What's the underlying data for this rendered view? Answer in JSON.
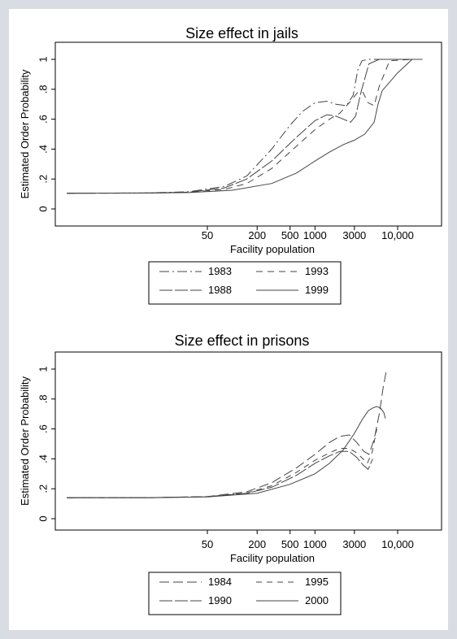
{
  "chart_data": [
    {
      "type": "line",
      "title": "Size effect in jails",
      "xlabel": "Facility population",
      "ylabel": "Estimated Order Probability",
      "x_scale": "log",
      "x_ticks": [
        50,
        200,
        500,
        1000,
        3000,
        10000
      ],
      "x_tick_labels": [
        "50",
        "200",
        "500",
        "1000",
        "3000",
        "10,000"
      ],
      "xlim": [
        1,
        30000
      ],
      "y_ticks": [
        0,
        0.2,
        0.4,
        0.6,
        0.8,
        1
      ],
      "y_tick_labels": [
        "0",
        ".2",
        ".4",
        ".6",
        ".8",
        "1"
      ],
      "ylim": [
        -0.03,
        1.03
      ],
      "grid": false,
      "legend_position": "below",
      "series": [
        {
          "name": "1983",
          "dash": "12,4,2,4",
          "x": [
            1,
            10,
            30,
            80,
            150,
            300,
            500,
            700,
            1000,
            1400,
            1800,
            2400,
            2900,
            3300,
            3700,
            4400,
            5500,
            8000,
            15000
          ],
          "y": [
            0.105,
            0.107,
            0.115,
            0.15,
            0.22,
            0.4,
            0.56,
            0.65,
            0.71,
            0.72,
            0.7,
            0.69,
            0.76,
            0.93,
            0.99,
            1.0,
            1.0,
            1.0,
            1.0
          ]
        },
        {
          "name": "1993",
          "dash": "8,6",
          "x": [
            1,
            10,
            30,
            80,
            150,
            300,
            600,
            1000,
            1500,
            2000,
            2700,
            3300,
            3800,
            4400,
            5200,
            6000,
            8000,
            15000
          ],
          "y": [
            0.105,
            0.106,
            0.112,
            0.13,
            0.17,
            0.27,
            0.42,
            0.53,
            0.6,
            0.64,
            0.72,
            0.78,
            0.78,
            0.71,
            0.69,
            0.82,
            0.99,
            1.0
          ]
        },
        {
          "name": "1988",
          "dash": "16,3",
          "x": [
            1,
            10,
            30,
            80,
            150,
            300,
            600,
            1000,
            1400,
            1800,
            2200,
            2700,
            3100,
            3600,
            4500,
            6000,
            8000,
            15000
          ],
          "y": [
            0.105,
            0.107,
            0.112,
            0.14,
            0.2,
            0.32,
            0.48,
            0.59,
            0.63,
            0.62,
            0.6,
            0.58,
            0.62,
            0.78,
            0.97,
            1.0,
            1.0,
            1.0
          ]
        },
        {
          "name": "1999",
          "dash": "",
          "x": [
            1,
            10,
            30,
            100,
            300,
            600,
            1000,
            1500,
            2200,
            3000,
            4000,
            5200,
            5800,
            6500,
            7500,
            10000,
            15000,
            20000
          ],
          "y": [
            0.105,
            0.106,
            0.109,
            0.125,
            0.17,
            0.24,
            0.32,
            0.38,
            0.43,
            0.46,
            0.5,
            0.58,
            0.7,
            0.79,
            0.83,
            0.91,
            1.0,
            1.0
          ]
        }
      ]
    },
    {
      "type": "line",
      "title": "Size effect in prisons",
      "xlabel": "Facility population",
      "ylabel": "Estimated Order Probability",
      "x_scale": "log",
      "x_ticks": [
        50,
        200,
        500,
        1000,
        3000,
        10000
      ],
      "x_tick_labels": [
        "50",
        "200",
        "500",
        "1000",
        "3000",
        "10,000"
      ],
      "xlim": [
        1,
        30000
      ],
      "y_ticks": [
        0,
        0.2,
        0.4,
        0.6,
        0.8,
        1
      ],
      "y_tick_labels": [
        "0",
        ".2",
        ".4",
        ".6",
        ".8",
        "1"
      ],
      "ylim": [
        -0.03,
        1.03
      ],
      "grid": false,
      "legend_position": "below",
      "series": [
        {
          "name": "1984",
          "dash": "12,5",
          "x": [
            1,
            10,
            50,
            150,
            300,
            600,
            1000,
            1500,
            2000,
            2600,
            3200,
            3900,
            4500,
            5200,
            6000,
            6700,
            7300
          ],
          "y": [
            0.14,
            0.141,
            0.148,
            0.18,
            0.24,
            0.34,
            0.43,
            0.51,
            0.55,
            0.56,
            0.51,
            0.45,
            0.43,
            0.53,
            0.7,
            0.88,
            0.99
          ]
        },
        {
          "name": "1995",
          "dash": "7,6",
          "x": [
            1,
            10,
            50,
            150,
            300,
            600,
            1000,
            1500,
            2000,
            2600,
            3200,
            3800,
            4300,
            4900,
            5600
          ],
          "y": [
            0.14,
            0.141,
            0.147,
            0.172,
            0.22,
            0.31,
            0.39,
            0.44,
            0.47,
            0.47,
            0.44,
            0.4,
            0.37,
            0.44,
            0.6
          ]
        },
        {
          "name": "1990",
          "dash": "16,3",
          "x": [
            1,
            10,
            50,
            150,
            300,
            600,
            1000,
            1500,
            2000,
            2600,
            3200,
            3800,
            4400,
            5000
          ],
          "y": [
            0.14,
            0.141,
            0.147,
            0.17,
            0.21,
            0.29,
            0.37,
            0.42,
            0.45,
            0.45,
            0.41,
            0.36,
            0.33,
            0.4
          ]
        },
        {
          "name": "2000",
          "dash": "",
          "x": [
            1,
            10,
            50,
            200,
            500,
            1000,
            1500,
            2200,
            3000,
            3700,
            4400,
            5000,
            5600,
            6200,
            6800,
            7100
          ],
          "y": [
            0.14,
            0.14,
            0.145,
            0.17,
            0.23,
            0.3,
            0.37,
            0.46,
            0.57,
            0.66,
            0.72,
            0.74,
            0.75,
            0.74,
            0.71,
            0.67
          ]
        }
      ]
    }
  ]
}
